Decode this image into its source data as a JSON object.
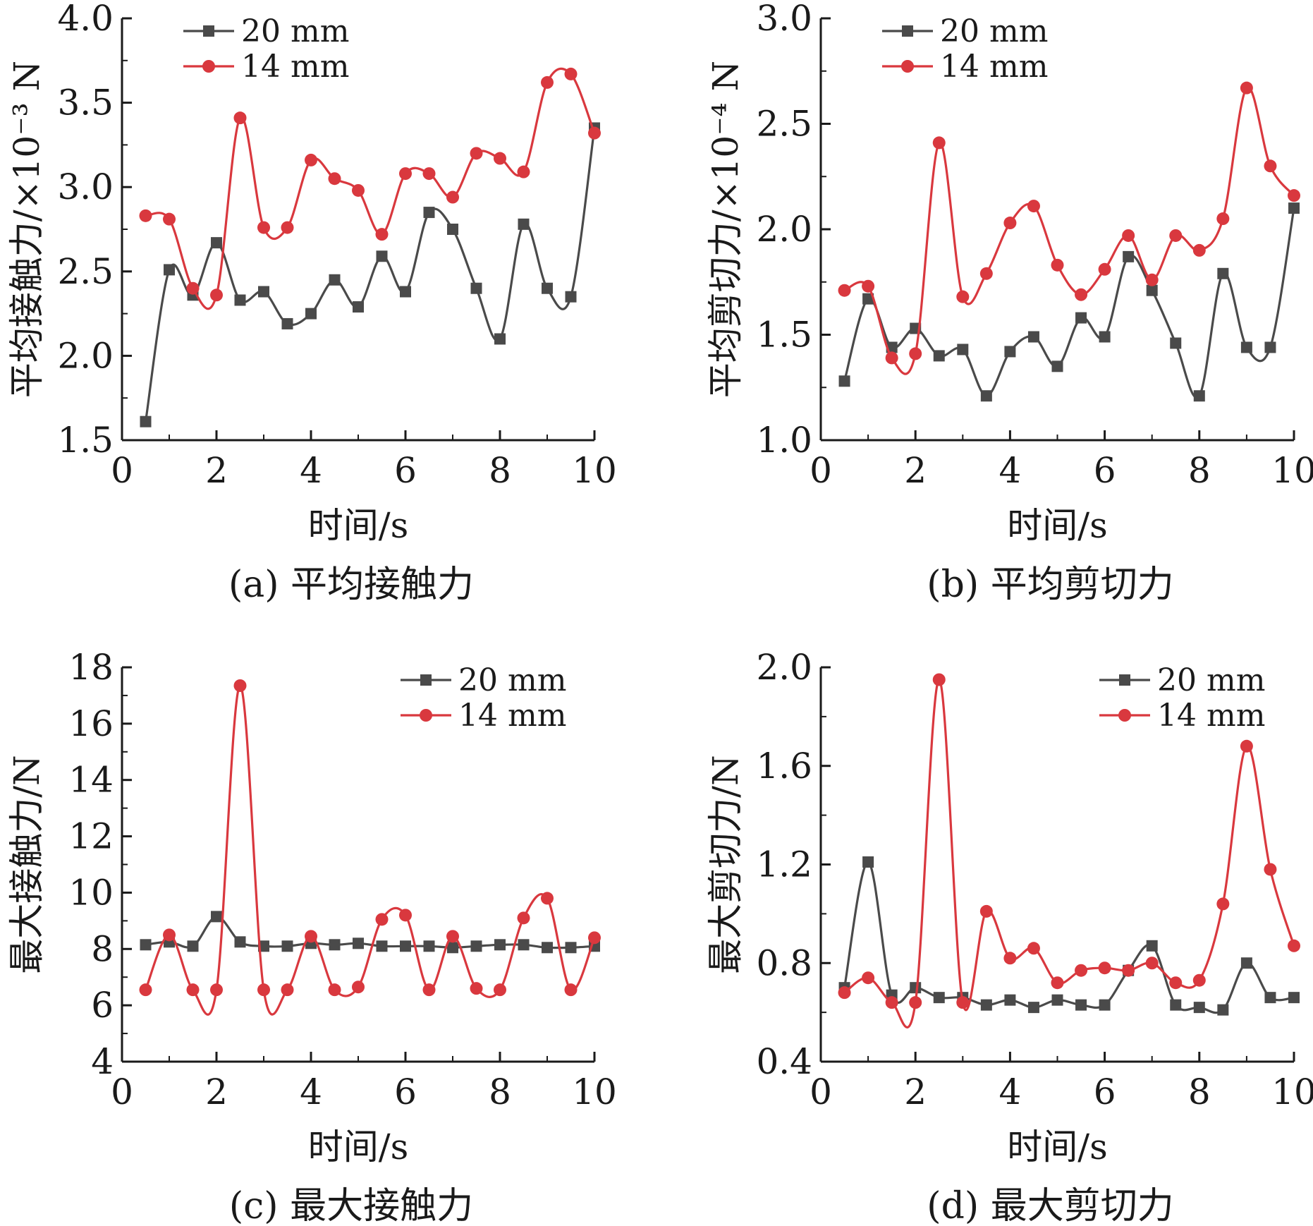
{
  "chart_data": [
    {
      "type": "line",
      "caption": "(a) 平均接触力",
      "xlabel": "时间/s",
      "ylabel": "平均接触力/×10⁻³ N",
      "xlim": [
        0,
        10
      ],
      "ylim": [
        1.5,
        4.0
      ],
      "xticks": [
        "0",
        "2",
        "4",
        "6",
        "8",
        "10"
      ],
      "yticks": [
        "1.5",
        "2.0",
        "2.5",
        "3.0",
        "3.5",
        "4.0"
      ],
      "legend_position": "top-left",
      "x": [
        0.5,
        1,
        1.5,
        2,
        2.5,
        3,
        3.5,
        4,
        4.5,
        5,
        5.5,
        6,
        6.5,
        7,
        7.5,
        8,
        8.5,
        9,
        9.5,
        10
      ],
      "series": [
        {
          "name": "20 mm",
          "color": "#4a4a4a",
          "marker": "square",
          "values": [
            1.61,
            2.51,
            2.36,
            2.67,
            2.33,
            2.38,
            2.19,
            2.25,
            2.45,
            2.29,
            2.59,
            2.38,
            2.85,
            2.75,
            2.4,
            2.1,
            2.78,
            2.4,
            2.35,
            3.35
          ]
        },
        {
          "name": "14 mm",
          "color": "#d9383e",
          "marker": "circle",
          "values": [
            2.83,
            2.81,
            2.4,
            2.36,
            3.41,
            2.76,
            2.76,
            3.16,
            3.05,
            2.98,
            2.72,
            3.08,
            3.08,
            2.94,
            3.2,
            3.17,
            3.09,
            3.62,
            3.67,
            3.32
          ]
        }
      ]
    },
    {
      "type": "line",
      "caption": "(b) 平均剪切力",
      "xlabel": "时间/s",
      "ylabel": "平均剪切力/×10⁻⁴ N",
      "xlim": [
        0,
        10
      ],
      "ylim": [
        1.0,
        3.0
      ],
      "xticks": [
        "0",
        "2",
        "4",
        "6",
        "8",
        "10"
      ],
      "yticks": [
        "1.0",
        "1.5",
        "2.0",
        "2.5",
        "3.0"
      ],
      "legend_position": "top-left",
      "x": [
        0.5,
        1,
        1.5,
        2,
        2.5,
        3,
        3.5,
        4,
        4.5,
        5,
        5.5,
        6,
        6.5,
        7,
        7.5,
        8,
        8.5,
        9,
        9.5,
        10
      ],
      "series": [
        {
          "name": "20 mm",
          "color": "#4a4a4a",
          "marker": "square",
          "values": [
            1.28,
            1.67,
            1.44,
            1.53,
            1.4,
            1.43,
            1.21,
            1.42,
            1.49,
            1.35,
            1.58,
            1.49,
            1.87,
            1.71,
            1.46,
            1.21,
            1.79,
            1.44,
            1.44,
            2.1
          ]
        },
        {
          "name": "14 mm",
          "color": "#d9383e",
          "marker": "circle",
          "values": [
            1.71,
            1.73,
            1.39,
            1.41,
            2.41,
            1.68,
            1.79,
            2.03,
            2.11,
            1.83,
            1.69,
            1.81,
            1.97,
            1.76,
            1.97,
            1.9,
            2.05,
            2.67,
            2.3,
            2.16
          ]
        }
      ]
    },
    {
      "type": "line",
      "caption": "(c) 最大接触力",
      "xlabel": "时间/s",
      "ylabel": "最大接触力/N",
      "xlim": [
        0,
        10
      ],
      "ylim": [
        4,
        18
      ],
      "xticks": [
        "0",
        "2",
        "4",
        "6",
        "8",
        "10"
      ],
      "yticks": [
        "4",
        "6",
        "8",
        "10",
        "12",
        "14",
        "16",
        "18"
      ],
      "legend_position": "top-right",
      "x": [
        0.5,
        1,
        1.5,
        2,
        2.5,
        3,
        3.5,
        4,
        4.5,
        5,
        5.5,
        6,
        6.5,
        7,
        7.5,
        8,
        8.5,
        9,
        9.5,
        10
      ],
      "series": [
        {
          "name": "20 mm",
          "color": "#4a4a4a",
          "marker": "square",
          "values": [
            8.15,
            8.25,
            8.1,
            9.15,
            8.25,
            8.1,
            8.1,
            8.2,
            8.15,
            8.2,
            8.1,
            8.1,
            8.1,
            8.05,
            8.1,
            8.15,
            8.15,
            8.05,
            8.05,
            8.1
          ]
        },
        {
          "name": "14 mm",
          "color": "#d9383e",
          "marker": "circle",
          "values": [
            6.55,
            8.5,
            6.55,
            6.55,
            17.35,
            6.55,
            6.55,
            8.45,
            6.55,
            6.65,
            9.05,
            9.2,
            6.55,
            8.45,
            6.6,
            6.55,
            9.1,
            9.8,
            6.55,
            8.4
          ]
        }
      ]
    },
    {
      "type": "line",
      "caption": "(d) 最大剪切力",
      "xlabel": "时间/s",
      "ylabel": "最大剪切力/N",
      "xlim": [
        0,
        10
      ],
      "ylim": [
        0.4,
        2.0
      ],
      "xticks": [
        "0",
        "2",
        "4",
        "6",
        "8",
        "10"
      ],
      "yticks": [
        "0.4",
        "0.8",
        "1.2",
        "1.6",
        "2.0"
      ],
      "legend_position": "top-right",
      "x": [
        0.5,
        1,
        1.5,
        2,
        2.5,
        3,
        3.5,
        4,
        4.5,
        5,
        5.5,
        6,
        6.5,
        7,
        7.5,
        8,
        8.5,
        9,
        9.5,
        10
      ],
      "series": [
        {
          "name": "20 mm",
          "color": "#4a4a4a",
          "marker": "square",
          "values": [
            0.7,
            1.21,
            0.67,
            0.7,
            0.66,
            0.66,
            0.63,
            0.65,
            0.62,
            0.65,
            0.63,
            0.63,
            0.77,
            0.87,
            0.63,
            0.62,
            0.61,
            0.8,
            0.66,
            0.66
          ]
        },
        {
          "name": "14 mm",
          "color": "#d9383e",
          "marker": "circle",
          "values": [
            0.68,
            0.74,
            0.64,
            0.64,
            1.95,
            0.64,
            1.01,
            0.82,
            0.86,
            0.72,
            0.77,
            0.78,
            0.77,
            0.8,
            0.72,
            0.73,
            1.04,
            1.68,
            1.18,
            0.87
          ]
        }
      ]
    }
  ]
}
